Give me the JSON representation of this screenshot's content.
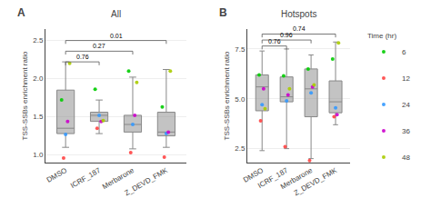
{
  "chart_data": [
    {
      "type": "box",
      "title": "All",
      "panel_label": "A",
      "ylabel": "TSS-SSBs enrichment ratio",
      "categories": [
        "DMSO",
        "ICRF_187",
        "Merbarone",
        "Z_DEVD_FMK"
      ],
      "color": "#888888",
      "boxes": [
        {
          "q1": 1.28,
          "median": 1.35,
          "q3": 1.85,
          "whislo": 1.1,
          "whishi": 2.22
        },
        {
          "q1": 1.44,
          "median": 1.52,
          "q3": 1.56,
          "whislo": 1.28,
          "whishi": 1.72
        },
        {
          "q1": 1.3,
          "median": 1.4,
          "q3": 1.52,
          "whislo": 1.08,
          "whishi": 2.02
        },
        {
          "q1": 1.25,
          "median": 1.3,
          "q3": 1.56,
          "whislo": 1.1,
          "whishi": 2.12
        }
      ],
      "series": [
        {
          "name": "6",
          "type": "scatter",
          "color": "#00cc00",
          "values": [
            1.72,
            1.86,
            2.1,
            1.63
          ]
        },
        {
          "name": "12",
          "type": "scatter",
          "color": "#ff4444",
          "values": [
            0.96,
            1.35,
            1.03,
            0.97
          ]
        },
        {
          "name": "24",
          "type": "scatter",
          "color": "#3399ff",
          "values": [
            1.27,
            1.52,
            1.4,
            1.28
          ]
        },
        {
          "name": "36",
          "type": "scatter",
          "color": "#cc00cc",
          "values": [
            1.44,
            1.44,
            1.52,
            1.3
          ]
        },
        {
          "name": "48",
          "type": "scatter",
          "color": "#aacc00",
          "values": [
            2.2,
            1.45,
            1.95,
            2.1
          ]
        }
      ],
      "annotations": [
        {
          "from": "DMSO",
          "to": "ICRF_187",
          "y": 2.22,
          "text": "0.76",
          "color": "#555555"
        },
        {
          "from": "DMSO",
          "to": "Merbarone",
          "y": 2.36,
          "text": "0.27",
          "color": "#555555"
        },
        {
          "from": "DMSO",
          "to": "Z_DEVD_FMK",
          "y": 2.5,
          "text": "0.01",
          "color": "#555555"
        }
      ],
      "ylim": [
        0.9,
        2.65
      ],
      "yticks": [
        {
          "value": 1.0,
          "label": "1.0"
        },
        1.5,
        {
          "value": 2.0,
          "label": "2.0"
        },
        2.5
      ]
    },
    {
      "type": "box",
      "title": "Hotspots",
      "panel_label": "B",
      "ylabel": "TSS-SSBs enrichment ratio",
      "categories": [
        "DMSO",
        "ICRF_187",
        "Merbarone",
        "Z_DEVD_FMK"
      ],
      "color": "#888888",
      "boxes": [
        {
          "q1": 4.4,
          "median": 5.6,
          "q3": 6.2,
          "whislo": 2.4,
          "whishi": 7.4
        },
        {
          "q1": 4.85,
          "median": 5.1,
          "q3": 6.1,
          "whislo": 2.5,
          "whishi": 7.5
        },
        {
          "q1": 4.1,
          "median": 5.5,
          "q3": 6.5,
          "whislo": 2.0,
          "whishi": 7.2
        },
        {
          "q1": 4.3,
          "median": 4.85,
          "q3": 5.9,
          "whislo": 3.7,
          "whishi": 7.85
        }
      ],
      "series": [
        {
          "name": "6",
          "type": "scatter",
          "color": "#00cc00",
          "values": [
            6.2,
            6.15,
            6.5,
            7.0
          ]
        },
        {
          "name": "12",
          "type": "scatter",
          "color": "#ff4444",
          "values": [
            3.9,
            2.6,
            1.9,
            4.1
          ]
        },
        {
          "name": "24",
          "type": "scatter",
          "color": "#3399ff",
          "values": [
            4.7,
            4.9,
            5.3,
            4.55
          ]
        },
        {
          "name": "36",
          "type": "scatter",
          "color": "#cc00cc",
          "values": [
            5.5,
            5.2,
            5.6,
            4.2
          ]
        },
        {
          "name": "48",
          "type": "scatter",
          "color": "#aacc00",
          "values": [
            4.5,
            5.5,
            5.7,
            7.8
          ]
        }
      ],
      "annotations": [
        {
          "from": "DMSO",
          "to": "ICRF_187",
          "y": 7.65,
          "text": "0.76",
          "color": "#555555"
        },
        {
          "from": "DMSO",
          "to": "Merbarone",
          "y": 7.95,
          "text": "0.96",
          "color": "#555555"
        },
        {
          "from": "DMSO",
          "to": "Z_DEVD_FMK",
          "y": 8.25,
          "text": "0.74",
          "color": "#555555"
        }
      ],
      "ylim": [
        1.8,
        8.5
      ],
      "yticks": [
        2.5,
        {
          "value": 5.0,
          "label": "5.0"
        },
        7.5
      ],
      "legend": "right",
      "legend_title": "Time (hr)"
    }
  ]
}
